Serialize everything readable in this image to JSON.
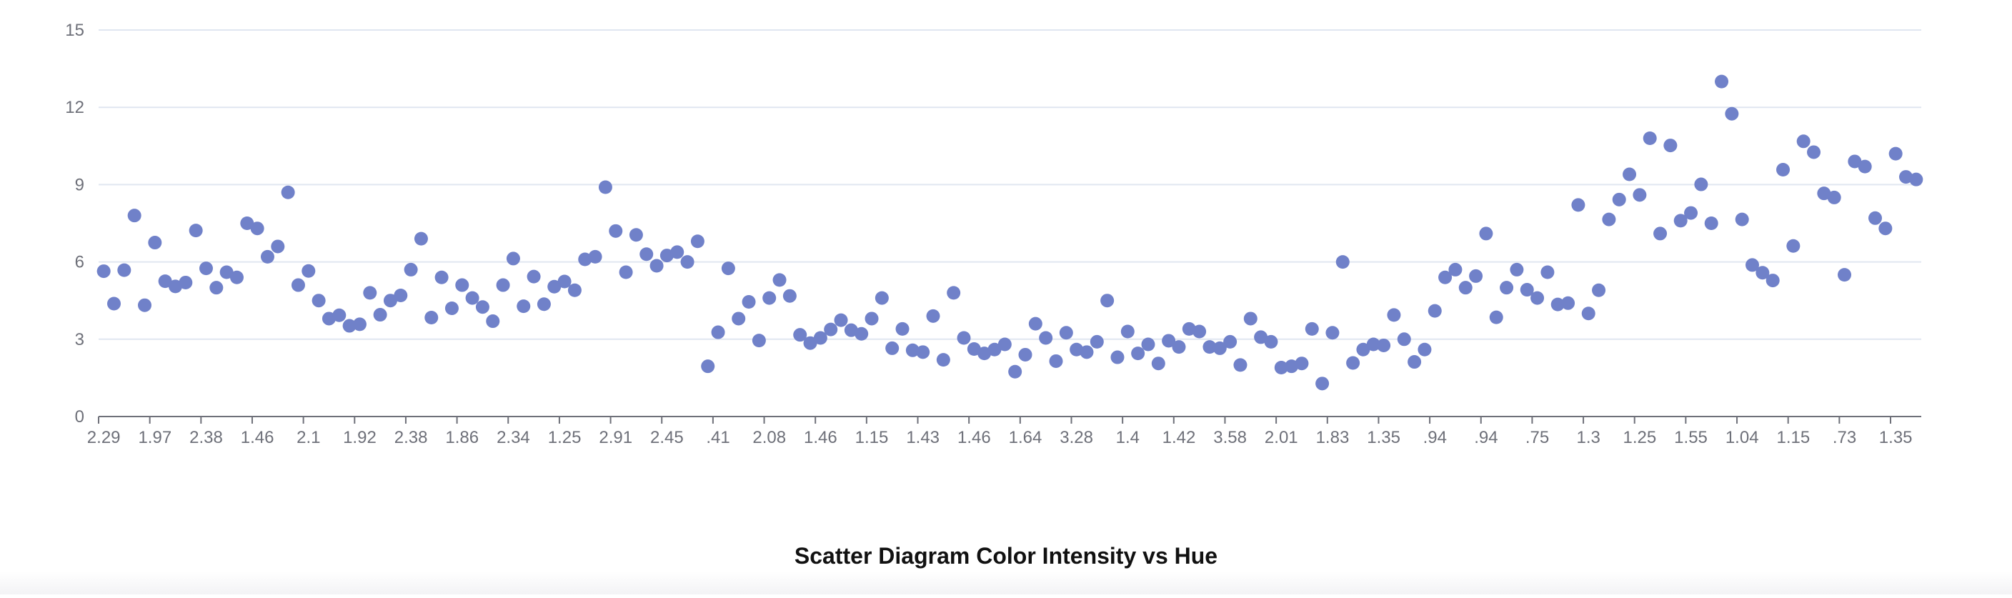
{
  "chart_data": {
    "type": "scatter",
    "title": "Scatter Diagram Color Intensity vs Hue",
    "xlabel": "",
    "ylabel": "",
    "ylim": [
      0,
      15
    ],
    "yticks": [
      0,
      3,
      6,
      9,
      12,
      15
    ],
    "grid": "horizontal",
    "legend": "none",
    "colors": {
      "point": "#7081c9",
      "grid": "#e0e6f1",
      "axis": "#6e7079",
      "text": "#6e7079",
      "title": "#111111"
    },
    "x_tick_labels": [
      "2.29",
      "1.97",
      "2.38",
      "1.46",
      "2.1",
      "1.92",
      "2.38",
      "1.86",
      "2.34",
      "1.25",
      "2.91",
      "2.45",
      ".41",
      "2.08",
      "1.46",
      "1.15",
      "1.43",
      "1.46",
      "1.64",
      "3.28",
      "1.4",
      "1.42",
      "3.58",
      "2.01",
      "1.83",
      "1.35",
      ".94",
      ".94",
      ".75",
      "1.3",
      "1.25",
      "1.55",
      "1.04",
      "1.15",
      ".73",
      "1.35"
    ],
    "y": [
      5.64,
      4.38,
      5.68,
      7.8,
      4.32,
      6.75,
      5.25,
      5.05,
      5.2,
      7.22,
      5.75,
      5.0,
      5.6,
      5.4,
      7.5,
      7.3,
      6.2,
      6.6,
      8.7,
      5.1,
      5.65,
      4.5,
      3.8,
      3.93,
      3.52,
      3.58,
      4.8,
      3.95,
      4.5,
      4.7,
      5.7,
      6.9,
      3.84,
      5.4,
      4.2,
      5.1,
      4.6,
      4.25,
      3.7,
      5.1,
      6.13,
      4.28,
      5.43,
      4.36,
      5.04,
      5.24,
      4.9,
      6.1,
      6.2,
      8.9,
      7.2,
      5.6,
      7.05,
      6.3,
      5.85,
      6.25,
      6.38,
      6.0,
      6.8,
      1.95,
      3.27,
      5.75,
      3.8,
      4.45,
      2.95,
      4.6,
      5.3,
      4.68,
      3.17,
      2.85,
      3.05,
      3.38,
      3.74,
      3.35,
      3.21,
      3.8,
      4.6,
      2.65,
      3.4,
      2.57,
      2.5,
      3.9,
      2.2,
      4.8,
      3.05,
      2.62,
      2.45,
      2.6,
      2.8,
      1.74,
      2.4,
      3.6,
      3.05,
      2.15,
      3.25,
      2.6,
      2.5,
      2.9,
      4.5,
      2.3,
      3.3,
      2.45,
      2.8,
      2.06,
      2.94,
      2.7,
      3.4,
      3.3,
      2.7,
      2.65,
      2.9,
      2.0,
      3.8,
      3.08,
      2.9,
      1.9,
      1.95,
      2.06,
      3.4,
      1.28,
      3.25,
      6.0,
      2.08,
      2.6,
      2.8,
      2.76,
      3.94,
      3.0,
      2.12,
      2.6,
      4.1,
      5.4,
      5.7,
      5.0,
      5.45,
      7.1,
      3.85,
      5.0,
      5.7,
      4.92,
      4.6,
      5.6,
      4.35,
      4.4,
      8.21,
      4.0,
      4.9,
      7.65,
      8.42,
      9.4,
      8.6,
      10.8,
      7.1,
      10.52,
      7.6,
      7.9,
      9.01,
      7.5,
      13.0,
      11.75,
      7.65,
      5.88,
      5.58,
      5.28,
      9.58,
      6.62,
      10.68,
      10.26,
      8.66,
      8.5,
      5.5,
      9.9,
      9.7,
      7.7,
      7.3,
      10.2,
      9.3,
      9.2
    ]
  }
}
